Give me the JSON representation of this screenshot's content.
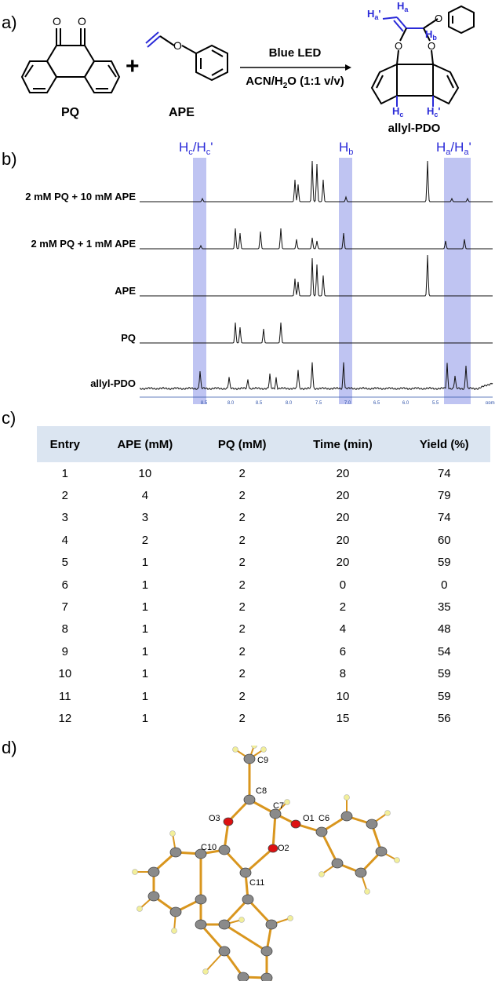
{
  "panels": {
    "a": "a)",
    "b": "b)",
    "c": "c)",
    "d": "d)"
  },
  "scheme": {
    "reactant1": "PQ",
    "plus": "+",
    "reactant2": "APE",
    "condition_top": "Blue LED",
    "condition_bottom_pre": "ACN/H",
    "condition_bottom_sub": "2",
    "condition_bottom_post": "O (1:1 v/v)",
    "product": "allyl-PDO",
    "atom_O": "O",
    "labels": {
      "Ha": "H",
      "Ha_sub": "a",
      "Ha_prime": "H",
      "Ha_prime_sub": "a",
      "Ha_prime_mark": "'",
      "Hb": "H",
      "Hb_sub": "b",
      "Hc": "H",
      "Hc_sub": "c",
      "Hc_prime": "H",
      "Hc_prime_sub": "c",
      "Hc_prime_mark": "'"
    }
  },
  "nmr": {
    "highlights": [
      {
        "main": "H",
        "sub": "c",
        "sep": "/H",
        "sub2": "c",
        "prime": "'"
      },
      {
        "main": "H",
        "sub": "b"
      },
      {
        "main": "H",
        "sub": "a",
        "sep": "/H",
        "sub2": "a",
        "prime": "'"
      }
    ],
    "traces": [
      {
        "label": "2 mM PQ + 10 mM APE"
      },
      {
        "label": "2 mM PQ + 1 mM APE"
      },
      {
        "label": "APE"
      },
      {
        "label": "PQ"
      },
      {
        "label": "allyl-PDO"
      }
    ],
    "axis_ticks": [
      "8.5",
      "8.0",
      "8.5",
      "8.0",
      "7.5",
      "7.0",
      "6.5",
      "6.0",
      "5.5"
    ],
    "axis_unit": "ppm"
  },
  "table": {
    "headers": [
      "Entry",
      "APE (mM)",
      "PQ (mM)",
      "Time (min)",
      "Yield (%)"
    ],
    "rows": [
      [
        "1",
        "10",
        "2",
        "20",
        "74"
      ],
      [
        "2",
        "4",
        "2",
        "20",
        "79"
      ],
      [
        "3",
        "3",
        "2",
        "20",
        "74"
      ],
      [
        "4",
        "2",
        "2",
        "20",
        "60"
      ],
      [
        "5",
        "1",
        "2",
        "20",
        "59"
      ],
      [
        "6",
        "1",
        "2",
        "0",
        "0"
      ],
      [
        "7",
        "1",
        "2",
        "2",
        "35"
      ],
      [
        "8",
        "1",
        "2",
        "4",
        "48"
      ],
      [
        "9",
        "1",
        "2",
        "6",
        "54"
      ],
      [
        "10",
        "1",
        "2",
        "8",
        "59"
      ],
      [
        "11",
        "1",
        "2",
        "10",
        "59"
      ],
      [
        "12",
        "1",
        "2",
        "15",
        "56"
      ]
    ]
  },
  "crystal": {
    "atom_labels": [
      "C9",
      "C8",
      "O3",
      "C7",
      "O1",
      "C6",
      "C10",
      "O2",
      "C11"
    ]
  },
  "colors": {
    "highlight": "#aab0ee",
    "label_blue": "#2a2ad8",
    "bond_orange": "#d9961e",
    "oxygen_red": "#dd1111",
    "carbon_gray": "#8a8a8a",
    "hydrogen_yellow": "#f2ef9a",
    "table_header": "#dbe5f1"
  }
}
